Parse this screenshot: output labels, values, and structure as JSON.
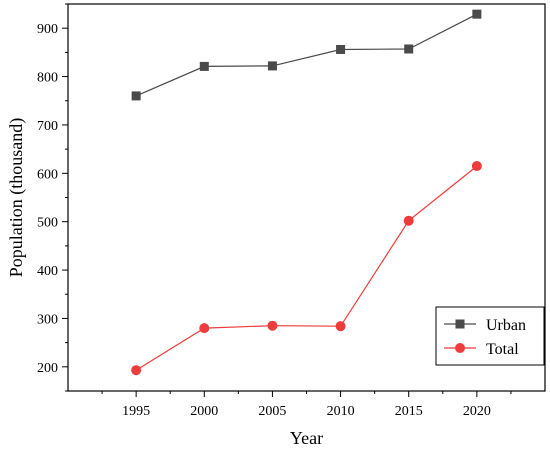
{
  "chart_data": {
    "type": "line",
    "x": [
      1995,
      2000,
      2005,
      2010,
      2015,
      2020
    ],
    "series": [
      {
        "name": "Urban",
        "values": [
          760,
          821,
          822,
          856,
          857,
          929
        ],
        "color": "#4a4a4a",
        "marker": "square"
      },
      {
        "name": "Total",
        "values": [
          193,
          280,
          285,
          284,
          502,
          615
        ],
        "color": "#ee3b3b",
        "marker": "circle"
      }
    ],
    "xlabel": "Year",
    "ylabel": "Population (thousand)",
    "xlim": [
      1990,
      2025
    ],
    "ylim": [
      150,
      950
    ],
    "xticks": [
      1995,
      2000,
      2005,
      2010,
      2015,
      2020
    ],
    "yticks": [
      200,
      300,
      400,
      500,
      600,
      700,
      800,
      900
    ],
    "grid": false,
    "legend_position": "bottom-right"
  }
}
